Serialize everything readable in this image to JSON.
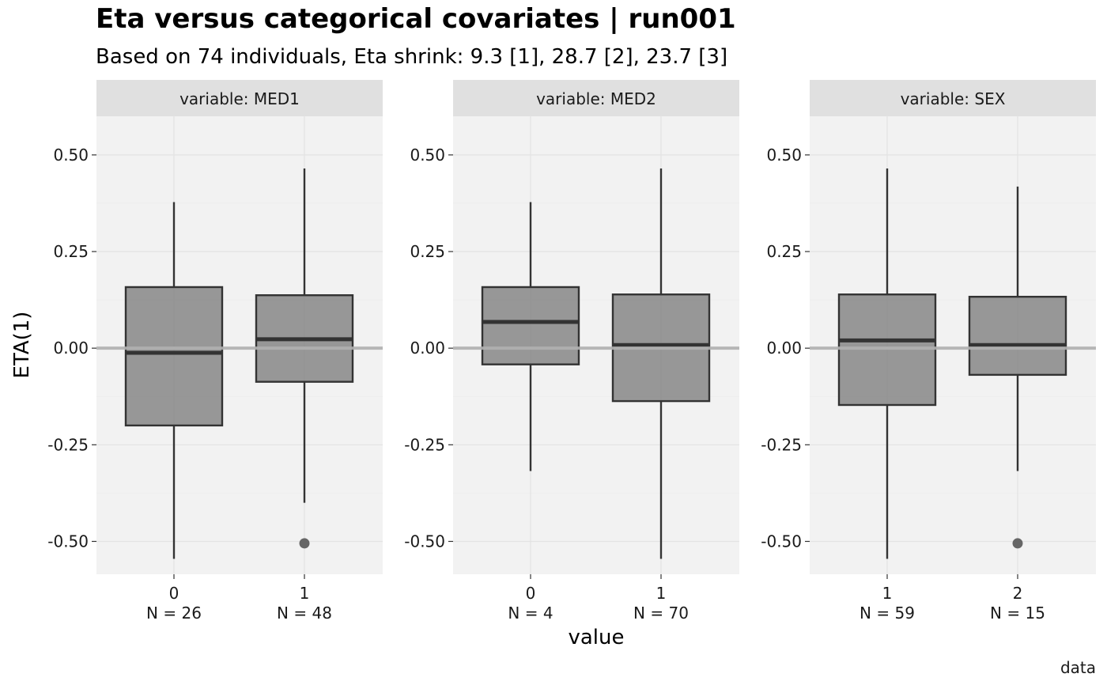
{
  "chart_data": {
    "type": "boxplot",
    "title": "Eta versus categorical covariates | run001",
    "subtitle": "Based on 74 individuals, Eta shrink: 9.3 [1], 28.7 [2], 23.7 [3]",
    "xlabel": "value",
    "ylabel": "ETA(1)",
    "caption": "data",
    "ylim": [
      -0.585,
      0.6
    ],
    "yticks": [
      0.5,
      0.25,
      0.0,
      -0.25,
      -0.5
    ],
    "ytick_labels": [
      "0.50",
      "0.25",
      "0.00",
      "-0.25",
      "-0.50"
    ],
    "reference_line": 0,
    "grid": true,
    "colors": {
      "box_fill": "#808080",
      "box_stroke": "#333333",
      "outlier": "#666666",
      "panel_bg": "#f2f2f2",
      "strip_bg": "#e0e0e0",
      "reference": "#b0b0b0"
    },
    "panels": [
      {
        "strip": "variable: MED1",
        "boxes": [
          {
            "category": "0",
            "n_label": "N = 26",
            "lower_whisker": -0.545,
            "q1": -0.2,
            "median": -0.012,
            "q3": 0.158,
            "upper_whisker": 0.378,
            "outliers": []
          },
          {
            "category": "1",
            "n_label": "N = 48",
            "lower_whisker": -0.4,
            "q1": -0.087,
            "median": 0.023,
            "q3": 0.137,
            "upper_whisker": 0.465,
            "outliers": [
              -0.505
            ]
          }
        ]
      },
      {
        "strip": "variable: MED2",
        "boxes": [
          {
            "category": "0",
            "n_label": "N = 4",
            "lower_whisker": -0.318,
            "q1": -0.042,
            "median": 0.068,
            "q3": 0.158,
            "upper_whisker": 0.378,
            "outliers": []
          },
          {
            "category": "1",
            "n_label": "N = 70",
            "lower_whisker": -0.545,
            "q1": -0.137,
            "median": 0.008,
            "q3": 0.139,
            "upper_whisker": 0.465,
            "outliers": []
          }
        ]
      },
      {
        "strip": "variable: SEX",
        "boxes": [
          {
            "category": "1",
            "n_label": "N = 59",
            "lower_whisker": -0.545,
            "q1": -0.147,
            "median": 0.02,
            "q3": 0.139,
            "upper_whisker": 0.465,
            "outliers": []
          },
          {
            "category": "2",
            "n_label": "N = 15",
            "lower_whisker": -0.318,
            "q1": -0.069,
            "median": 0.008,
            "q3": 0.133,
            "upper_whisker": 0.418,
            "outliers": [
              -0.505
            ]
          }
        ]
      }
    ]
  }
}
